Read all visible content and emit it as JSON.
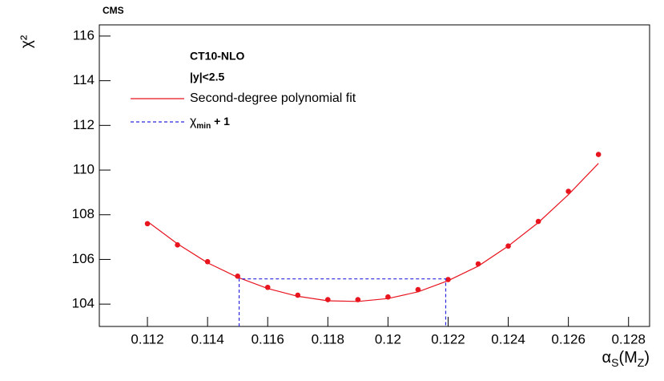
{
  "chart_data": {
    "type": "scatter",
    "title": "CMS",
    "ylabel": "χ²",
    "xlabel": [
      "α",
      "S",
      "(M",
      "Z",
      ")"
    ],
    "xlim": [
      0.1104,
      0.1287
    ],
    "ylim": [
      103,
      116.5
    ],
    "xticks": [
      0.112,
      0.114,
      0.116,
      0.118,
      0.12,
      0.122,
      0.124,
      0.126,
      0.128
    ],
    "yticks": [
      104,
      106,
      108,
      110,
      112,
      114,
      116
    ],
    "legend_header": [
      "CT10-NLO",
      "|y|<2.5"
    ],
    "series": [
      {
        "style": "markers",
        "color": "#e8141e",
        "x": [
          0.112,
          0.113,
          0.114,
          0.115,
          0.116,
          0.117,
          0.118,
          0.119,
          0.12,
          0.121,
          0.122,
          0.123,
          0.124,
          0.125,
          0.126,
          0.127
        ],
        "values": [
          107.6,
          106.65,
          105.9,
          105.25,
          104.75,
          104.4,
          104.2,
          104.2,
          104.32,
          104.65,
          105.1,
          105.8,
          106.6,
          107.7,
          109.05,
          110.7
        ]
      },
      {
        "style": "line",
        "name": "Second-degree polynomial fit",
        "color": "#e8141e",
        "x": [
          0.112,
          0.113,
          0.114,
          0.115,
          0.116,
          0.117,
          0.118,
          0.119,
          0.12,
          0.121,
          0.122,
          0.123,
          0.124,
          0.125,
          0.126,
          0.127
        ],
        "values": [
          107.7,
          106.7,
          105.85,
          105.2,
          104.7,
          104.35,
          104.15,
          104.12,
          104.25,
          104.55,
          105.05,
          105.7,
          106.6,
          107.65,
          108.9,
          110.3
        ]
      },
      {
        "style": "dashed",
        "name": "χ",
        "name_sub": "min",
        "name_suffix": " + 1",
        "color": "#2828e0",
        "x": [
          0.11505,
          0.11505,
          0.12192,
          0.12192
        ],
        "values": [
          103,
          105.13,
          105.13,
          103
        ]
      }
    ]
  }
}
